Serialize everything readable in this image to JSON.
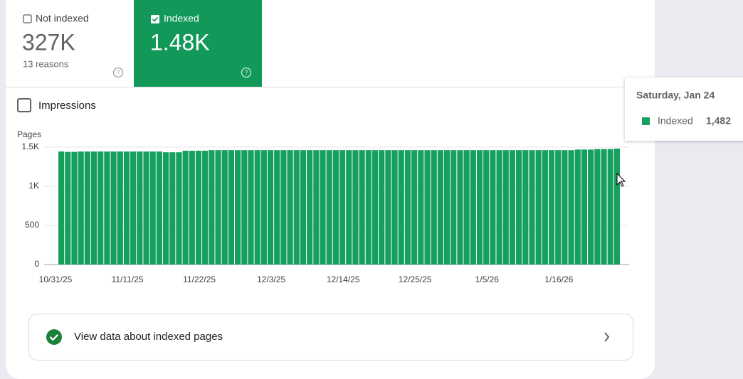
{
  "cards": {
    "not_indexed": {
      "label": "Not indexed",
      "value": "327K",
      "subtitle": "13 reasons"
    },
    "indexed": {
      "label": "Indexed",
      "value": "1.48K"
    }
  },
  "impressions_label": "Impressions",
  "link": {
    "label": "View data about indexed pages"
  },
  "chart_data": {
    "type": "bar",
    "ylabel": "Pages",
    "categories": [
      "10/31/25",
      null,
      null,
      null,
      null,
      null,
      null,
      null,
      null,
      null,
      null,
      "11/11/25",
      null,
      null,
      null,
      null,
      null,
      null,
      null,
      null,
      null,
      null,
      "11/22/25",
      null,
      null,
      null,
      null,
      null,
      null,
      null,
      null,
      null,
      null,
      "12/3/25",
      null,
      null,
      null,
      null,
      null,
      null,
      null,
      null,
      null,
      null,
      "12/14/25",
      null,
      null,
      null,
      null,
      null,
      null,
      null,
      null,
      null,
      null,
      "12/25/25",
      null,
      null,
      null,
      null,
      null,
      null,
      null,
      null,
      null,
      null,
      "1/5/26",
      null,
      null,
      null,
      null,
      null,
      null,
      null,
      null,
      null,
      null,
      "1/16/26",
      null,
      null,
      null,
      null,
      null,
      null,
      null,
      null
    ],
    "series": [
      {
        "name": "Indexed",
        "color": "#16a05d",
        "values": [
          1445,
          1440,
          1440,
          1445,
          1445,
          1445,
          1445,
          1445,
          1445,
          1445,
          1445,
          1445,
          1445,
          1445,
          1445,
          1445,
          1435,
          1435,
          1435,
          1455,
          1455,
          1455,
          1455,
          1462,
          1462,
          1462,
          1462,
          1462,
          1462,
          1462,
          1462,
          1462,
          1462,
          1462,
          1462,
          1462,
          1462,
          1462,
          1462,
          1462,
          1462,
          1462,
          1462,
          1462,
          1462,
          1462,
          1462,
          1462,
          1462,
          1462,
          1462,
          1462,
          1462,
          1462,
          1462,
          1462,
          1462,
          1462,
          1462,
          1462,
          1462,
          1462,
          1462,
          1462,
          1462,
          1462,
          1462,
          1462,
          1462,
          1462,
          1462,
          1462,
          1462,
          1462,
          1462,
          1462,
          1462,
          1462,
          1462,
          1470,
          1470,
          1470,
          1476,
          1476,
          1476,
          1482
        ]
      }
    ],
    "ylim": [
      0,
      1500
    ],
    "yticks": [
      0,
      500,
      {
        "value": 1000,
        "label": "1K"
      },
      {
        "value": 1500,
        "label": "1.5K"
      }
    ],
    "grid": true,
    "tooltip": {
      "title": "Saturday, Jan 24",
      "value_label": "1,482"
    }
  }
}
